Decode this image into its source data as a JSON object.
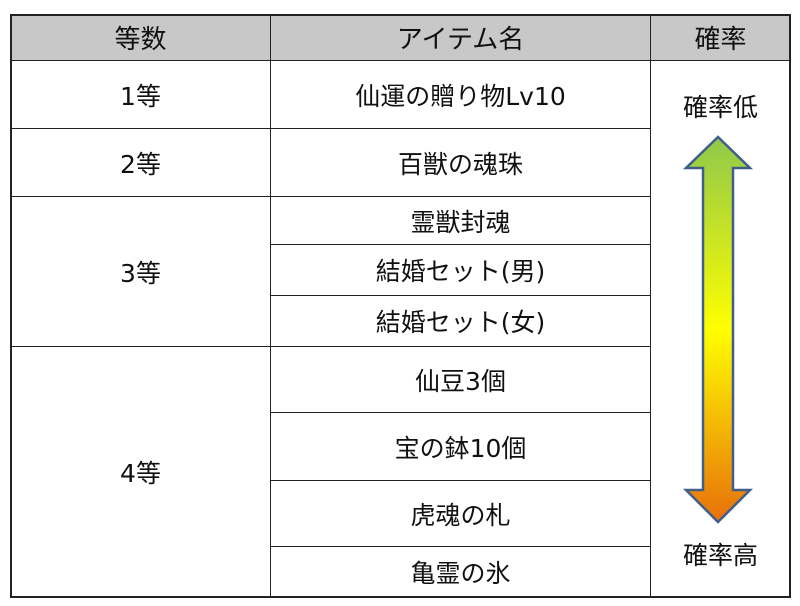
{
  "header": {
    "rank": "等数",
    "item": "アイテム名",
    "probability": "確率"
  },
  "groups": [
    {
      "rank": "1等",
      "items": [
        "仙運の贈り物Lv10"
      ]
    },
    {
      "rank": "2等",
      "items": [
        "百獣の魂珠"
      ]
    },
    {
      "rank": "3等",
      "items": [
        "霊獣封魂",
        "結婚セット(男)",
        "結婚セット(女)"
      ]
    },
    {
      "rank": "4等",
      "items": [
        "仙豆3個",
        "宝の鉢10個",
        "虎魂の札",
        "亀霊の氷"
      ]
    }
  ],
  "probability_scale": {
    "top_label": "確率低",
    "bottom_label": "確率高",
    "arrow_icon": "double-arrow-vertical",
    "gradient_colors": [
      "#8fc84a",
      "#ffff00",
      "#e8700a"
    ],
    "outline_color": "#3f5f8a"
  },
  "colors": {
    "header_bg": "#c8c8c8",
    "border": "#222222"
  }
}
